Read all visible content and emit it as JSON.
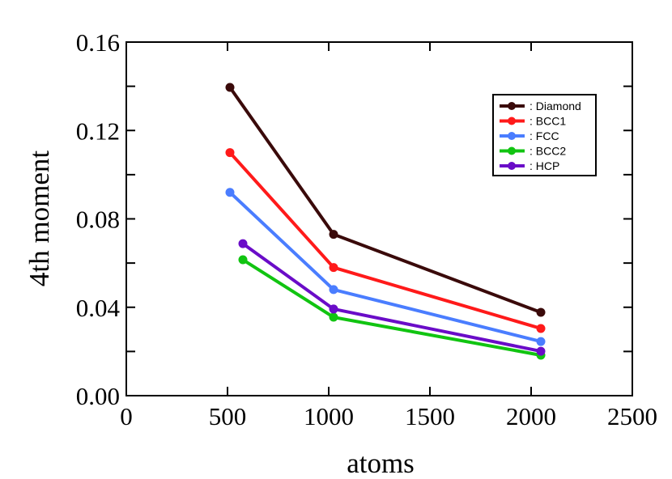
{
  "chart_data": {
    "type": "line",
    "title": "",
    "xlabel": "atoms",
    "ylabel": "4th moment",
    "xlim": [
      0,
      2500
    ],
    "ylim": [
      0,
      0.16
    ],
    "xticks": [
      "0",
      "500",
      "1000",
      "1500",
      "2000",
      "2500"
    ],
    "xtick_values": [
      0,
      500,
      1000,
      1500,
      2000,
      2500
    ],
    "yticks": [
      "0.00",
      "0.04",
      "0.08",
      "0.12",
      "0.16"
    ],
    "ytick_values": [
      0,
      0.04,
      0.08,
      0.12,
      0.16
    ],
    "grid": false,
    "legend_position": "top-right",
    "series": [
      {
        "name": ": Diamond",
        "color": "#3a0a0a",
        "x": [
          512,
          1024,
          2048
        ],
        "y": [
          0.1395,
          0.073,
          0.0377
        ]
      },
      {
        "name": ": BCC1",
        "color": "#ff1a1a",
        "x": [
          512,
          1024,
          2048
        ],
        "y": [
          0.11,
          0.058,
          0.0304
        ]
      },
      {
        "name": ": FCC",
        "color": "#4a7dff",
        "x": [
          512,
          1024,
          2048
        ],
        "y": [
          0.092,
          0.048,
          0.0245
        ]
      },
      {
        "name": ": BCC2",
        "color": "#11c411",
        "x": [
          576,
          1024,
          2048
        ],
        "y": [
          0.0615,
          0.0355,
          0.0183
        ]
      },
      {
        "name": ": HCP",
        "color": "#6a0cc8",
        "x": [
          576,
          1024,
          2048
        ],
        "y": [
          0.0688,
          0.0392,
          0.0201
        ]
      }
    ]
  }
}
